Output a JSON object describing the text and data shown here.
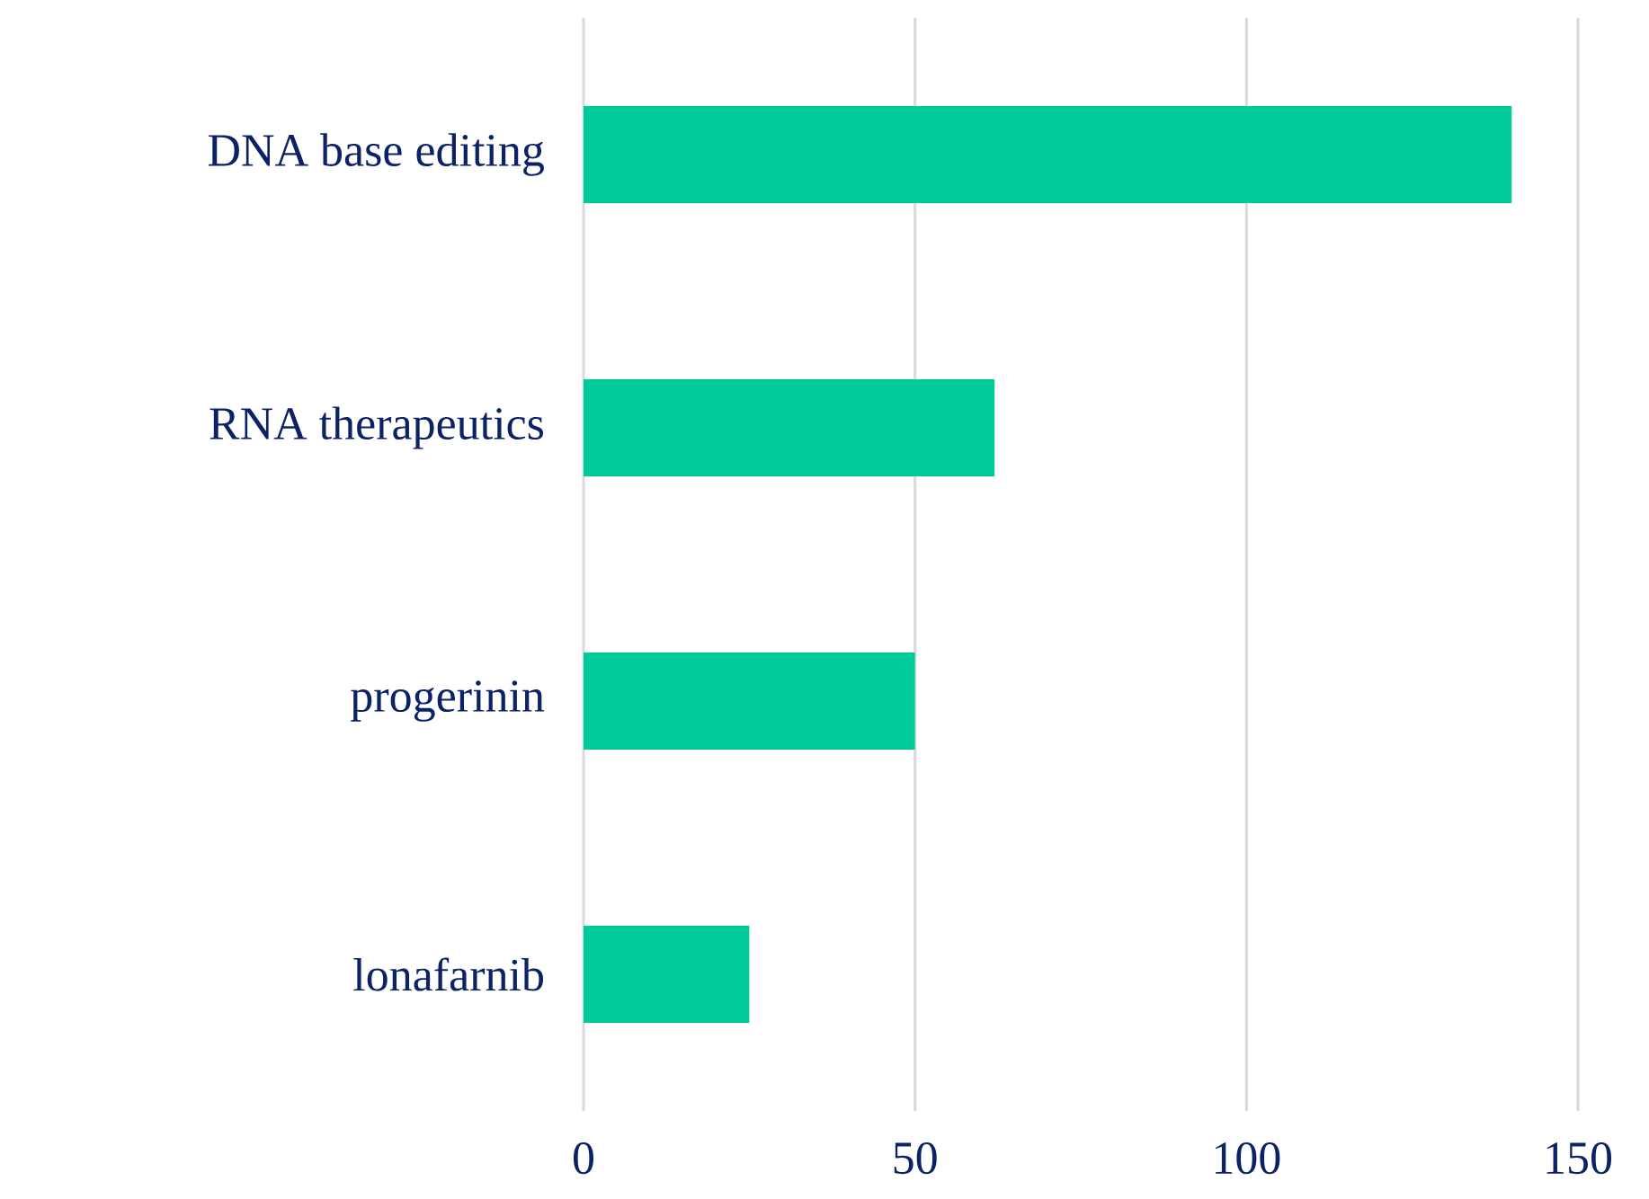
{
  "chart_data": {
    "type": "bar",
    "orientation": "horizontal",
    "categories": [
      "DNA base editing",
      "RNA therapeutics",
      "progerinin",
      "lonafarnib"
    ],
    "values": [
      140,
      62,
      50,
      25
    ],
    "color": "#00cc99",
    "xlim": [
      0,
      150
    ],
    "xticks": [
      0,
      50,
      100,
      150
    ],
    "grid": "x"
  }
}
